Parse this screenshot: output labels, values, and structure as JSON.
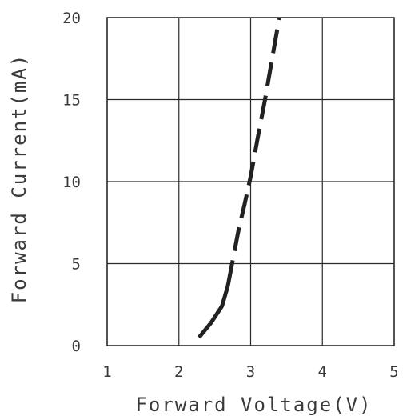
{
  "chart_data": {
    "type": "line",
    "xlabel": "Forward Voltage(V)",
    "ylabel": "Forward Current(mA)",
    "xlim": [
      1,
      5
    ],
    "ylim": [
      0,
      20
    ],
    "x_ticks": [
      "1",
      "2",
      "3",
      "4",
      "5"
    ],
    "y_ticks": [
      "0",
      "5",
      "10",
      "15",
      "20"
    ],
    "grid": true,
    "series": [
      {
        "line_style": "dashed",
        "color": "#222222",
        "x": [
          2.28,
          2.45,
          2.6,
          2.68,
          2.75,
          2.83,
          2.92,
          3.0,
          3.1,
          3.2,
          3.3,
          3.4
        ],
        "y": [
          0.5,
          1.4,
          2.4,
          3.6,
          5.2,
          7.0,
          8.7,
          10.3,
          12.7,
          15.0,
          17.5,
          20.0
        ]
      }
    ]
  }
}
